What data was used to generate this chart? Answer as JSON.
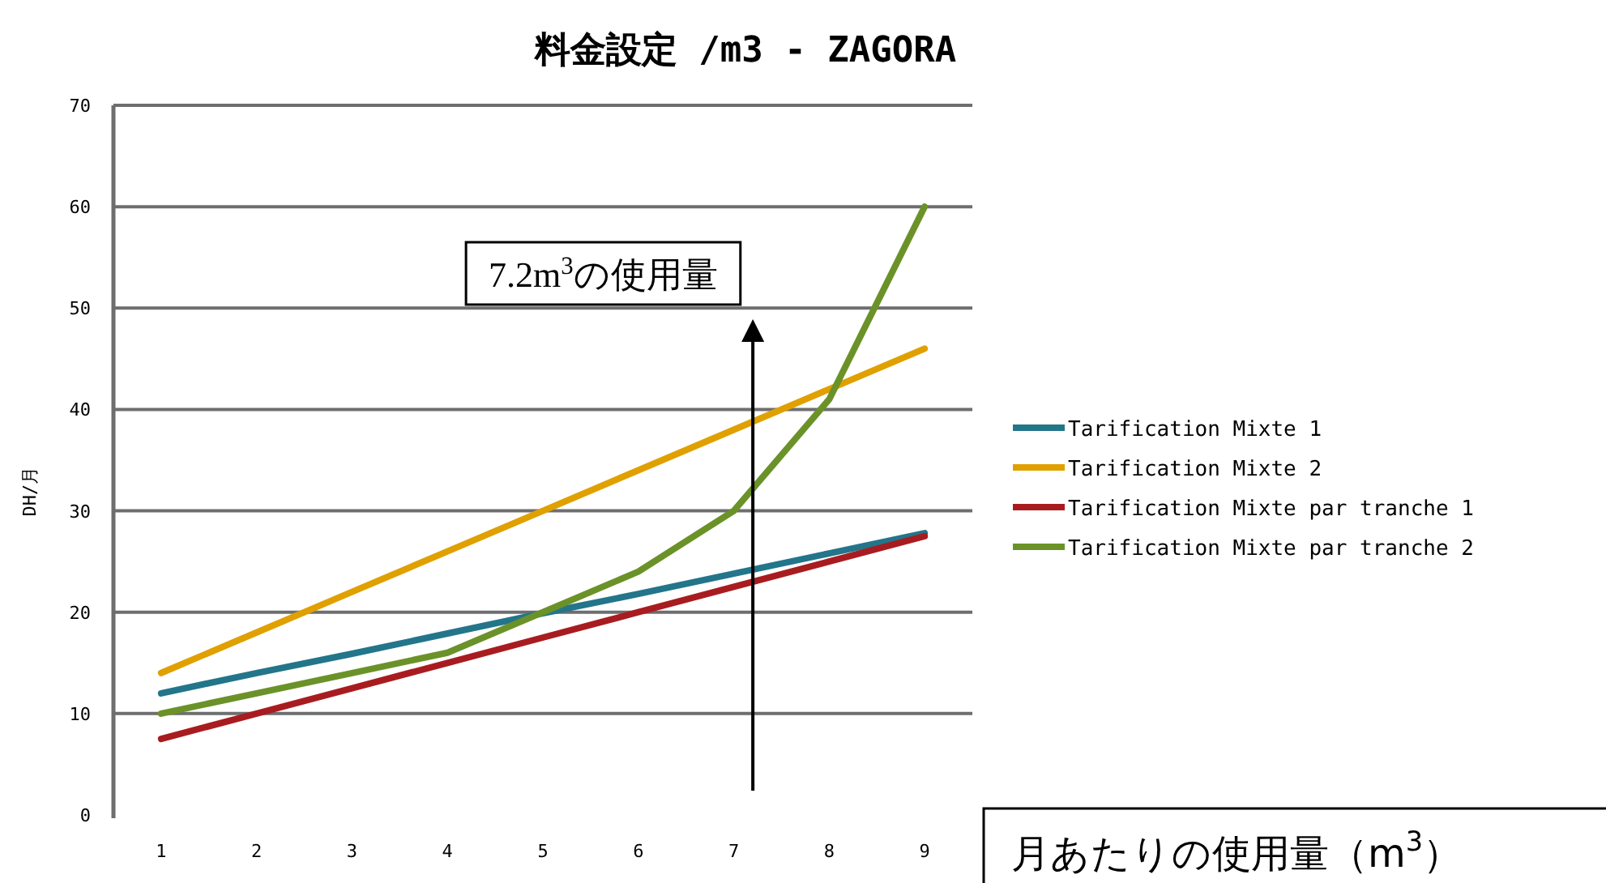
{
  "chart_data": {
    "type": "line",
    "title": "料金設定 /m3 - ZAGORA",
    "xlabel": "月あたりの使用量（m$^{3}$）",
    "ylabel": "DH/月",
    "x": [
      1,
      2,
      3,
      4,
      5,
      6,
      7,
      8,
      9
    ],
    "xlim": [
      0.5,
      9.5
    ],
    "xticks": [
      1,
      2,
      3,
      4,
      5,
      6,
      7,
      8,
      9
    ],
    "ylim": [
      0,
      70
    ],
    "yticks": [
      0,
      10,
      20,
      30,
      40,
      50,
      60,
      70
    ],
    "grid": "y",
    "legend": "right",
    "marker": "none",
    "line_style": "solid",
    "series": [
      {
        "name": "Tarification Mixte 1",
        "color": "#23758a",
        "values": [
          12,
          14,
          15.9,
          17.9,
          19.9,
          21.8,
          23.8,
          25.8,
          27.8
        ]
      },
      {
        "name": "Tarification Mixte 2",
        "color": "#e0a000",
        "values": [
          14,
          18,
          22,
          26,
          30,
          34,
          38,
          42,
          46
        ]
      },
      {
        "name": "Tarification Mixte par tranche 1",
        "color": "#a81c20",
        "values": [
          7.5,
          10,
          12.5,
          15,
          17.5,
          20,
          22.5,
          25,
          27.5
        ]
      },
      {
        "name": "Tarification Mixte par tranche 2",
        "color": "#6b9228",
        "values": [
          10,
          12,
          14,
          16,
          20,
          24,
          30,
          41,
          60
        ]
      }
    ],
    "ref_lines": [
      {
        "axis": "x",
        "value": 7.2,
        "label": "7.2m$^{3}$の使用量",
        "color": "#000000"
      }
    ]
  }
}
